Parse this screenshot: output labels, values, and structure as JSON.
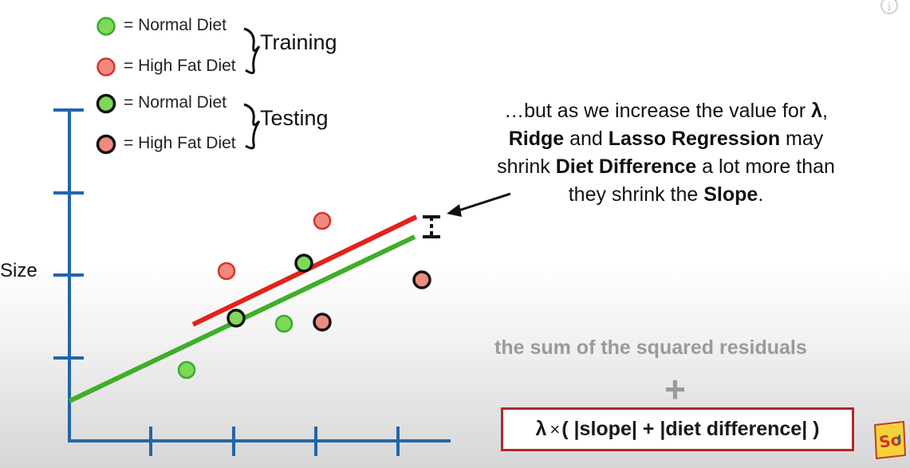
{
  "legend": {
    "items": [
      {
        "label": "= Normal Diet",
        "fill": "#7ed957",
        "stroke": "#3daa35"
      },
      {
        "label": "= High Fat Diet",
        "fill": "#f08a80",
        "stroke": "#d9322b"
      },
      {
        "label": "= Normal Diet",
        "fill": "#7ed957",
        "stroke": "#111111"
      },
      {
        "label": "= High Fat Diet",
        "fill": "#f08a80",
        "stroke": "#111111"
      }
    ],
    "training_label": "Training",
    "testing_label": "Testing"
  },
  "axis": {
    "y_label": "Size",
    "color": "#2266aa"
  },
  "annotation": {
    "line1_pre": "…but as we increase the value for ",
    "lambda": "λ",
    "line1_post": ",",
    "ridge": "Ridge",
    "and": " and ",
    "lasso": "Lasso Regression",
    "may": " may",
    "shrink": "shrink ",
    "diet_diff": "Diet Difference",
    "more": " a lot more than",
    "they": "they shrink the ",
    "slope": "Slope",
    "period": "."
  },
  "formula": {
    "ssr": "the sum of the squared residuals",
    "plus": "+",
    "lambda": "λ",
    "times": "×",
    "rest": "( |slope| + |diet difference| )"
  },
  "colors": {
    "green_line": "#3fae2a",
    "red_line": "#e2231a",
    "box_border": "#b2272a"
  },
  "icons": {
    "info": "info-icon",
    "logo": "statquest-logo"
  }
}
